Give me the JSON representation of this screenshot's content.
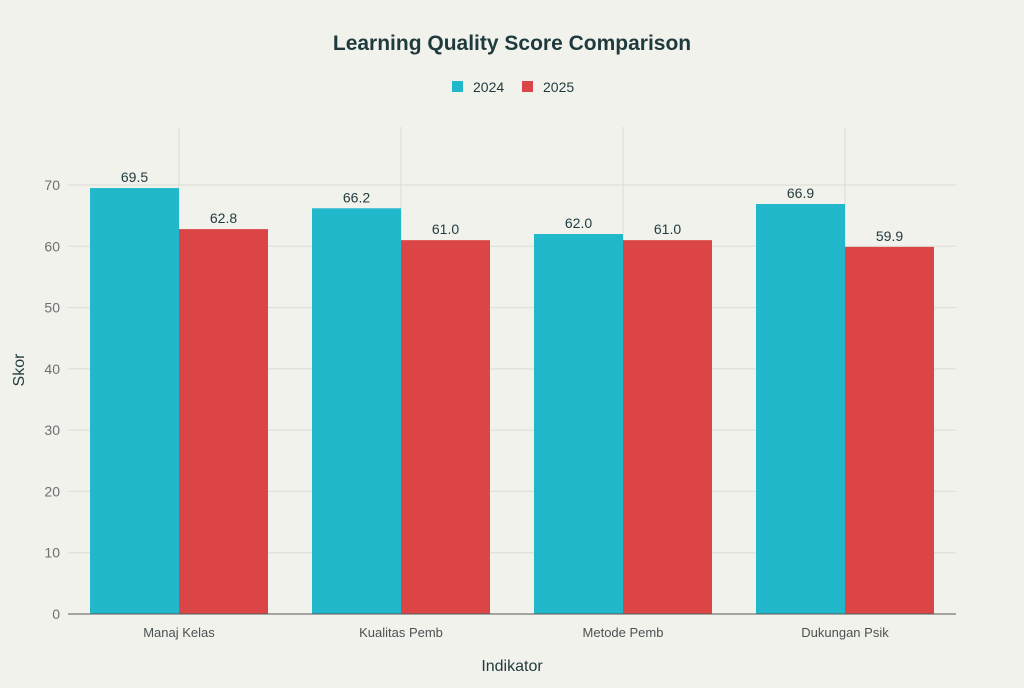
{
  "chart_data": {
    "type": "bar",
    "title": "Learning Quality Score Comparison",
    "xlabel": "Indikator",
    "ylabel": "Skor",
    "categories": [
      "Manaj Kelas",
      "Kualitas Pemb",
      "Metode Pemb",
      "Dukungan Psik"
    ],
    "series": [
      {
        "name": "2024",
        "color": "#21b8cc",
        "values": [
          69.5,
          66.2,
          62.0,
          66.9
        ]
      },
      {
        "name": "2025",
        "color": "#db4545",
        "values": [
          62.8,
          61.0,
          61.0,
          59.9
        ]
      }
    ],
    "ylim": [
      0,
      79.5
    ],
    "yticks": [
      0,
      10,
      20,
      30,
      40,
      50,
      60,
      70
    ],
    "grid": true,
    "legend_position": "top-center"
  }
}
